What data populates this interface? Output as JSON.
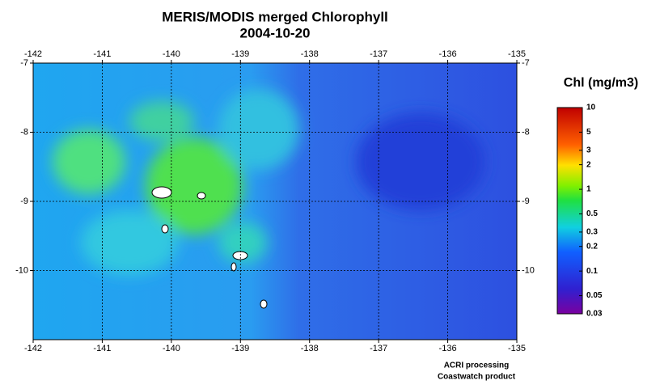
{
  "title": [
    "MERIS/MODIS merged Chlorophyll",
    "2004-10-20"
  ],
  "map": {
    "xlim": [
      -142,
      -135
    ],
    "ylim": [
      -11,
      -7
    ],
    "xticks": [
      -142,
      -141,
      -140,
      -139,
      -138,
      -137,
      -136,
      -135
    ],
    "yticks": [
      -10,
      -9,
      -8,
      -7
    ]
  },
  "colorbar": {
    "title": "Chl (mg/m3)",
    "range": [
      0.03,
      10
    ],
    "log": true,
    "ticks": [
      10,
      5,
      3,
      2,
      1,
      0.5,
      0.3,
      0.2,
      0.1,
      0.05,
      0.03
    ]
  },
  "credits": [
    "ACRI processing",
    "Coastwatch product"
  ]
}
